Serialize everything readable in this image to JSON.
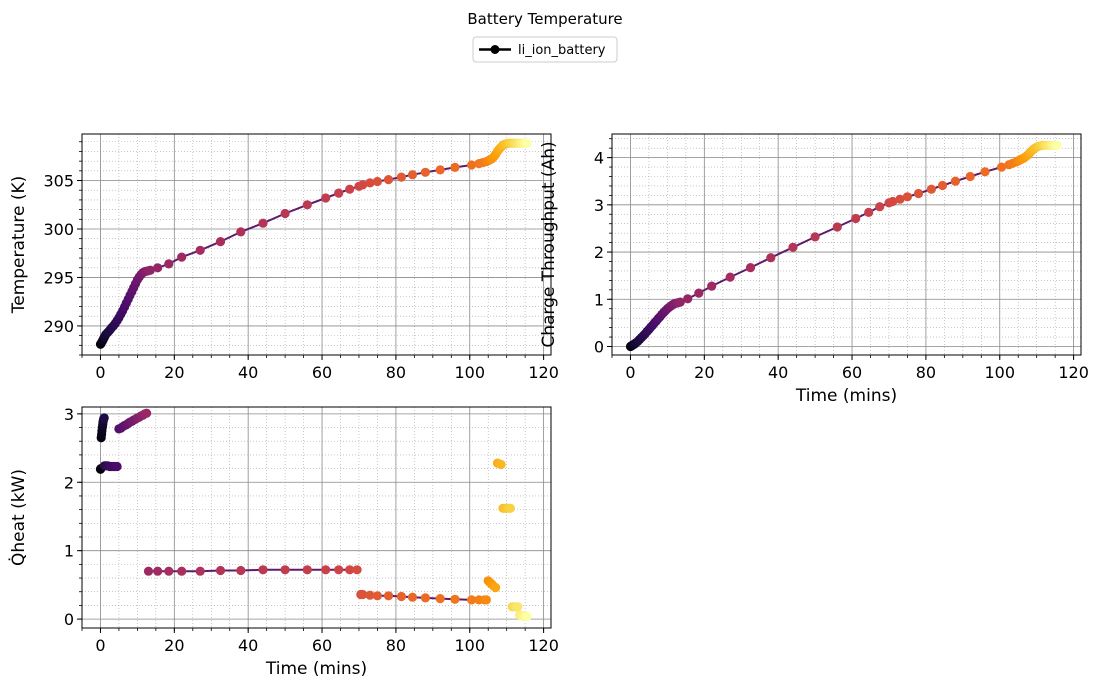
{
  "figure": {
    "title": "Battery Temperature",
    "legend": {
      "label": "li_ion_battery",
      "placement": "top-center"
    }
  },
  "style": {
    "line_color": "#5e1b6e",
    "major_grid_color": "#8c8c8c",
    "minor_grid_color": "#a6a6a6",
    "colormap": "inferno",
    "colormap_stops": [
      "#000004",
      "#1b0c41",
      "#4a0c6b",
      "#781c6d",
      "#a52c60",
      "#cf4446",
      "#ed6925",
      "#fb9b06",
      "#f7d13d",
      "#fcffa4"
    ],
    "grid": "major solid + minor dotted"
  },
  "chart_data": [
    {
      "id": "temperature",
      "type": "line",
      "title": "",
      "xlabel": "",
      "ylabel": "Temperature (K)",
      "xlim": [
        -5,
        122
      ],
      "ylim": [
        287,
        309.8
      ],
      "xticks": [
        0,
        20,
        40,
        60,
        80,
        100,
        120
      ],
      "yticks": [
        290,
        295,
        300,
        305
      ],
      "grid": true,
      "series": [
        {
          "name": "li_ion_battery",
          "x": [
            0,
            0.2,
            0.4,
            0.6,
            0.8,
            1.0,
            1.2,
            1.5,
            2.0,
            2.5,
            3.0,
            3.5,
            4.0,
            4.5,
            5.0,
            5.5,
            6.0,
            6.5,
            7.0,
            7.5,
            8.0,
            8.5,
            9.0,
            9.5,
            10.0,
            10.5,
            11.0,
            11.5,
            12.0,
            12.5,
            13.0,
            13.5,
            15.5,
            18.5,
            22.0,
            27.0,
            32.5,
            38.0,
            44.0,
            50.0,
            56.0,
            61.0,
            64.5,
            67.5,
            70.0,
            71.0,
            73.0,
            75.0,
            78.0,
            81.5,
            84.5,
            88.0,
            92.0,
            96.0,
            100.5,
            102.5,
            103.5,
            104.5,
            105.0,
            105.5,
            106.0,
            106.5,
            107.0,
            107.5,
            108.0,
            108.5,
            109.0,
            109.5,
            110.0,
            110.5,
            111.0,
            111.5,
            112.0,
            112.5,
            113.0,
            113.5,
            114.0,
            114.5,
            115.0,
            115.5
          ],
          "y": [
            288.1,
            288.2,
            288.35,
            288.5,
            288.65,
            288.8,
            288.95,
            289.15,
            289.35,
            289.55,
            289.8,
            290.0,
            290.25,
            290.55,
            290.85,
            291.2,
            291.55,
            291.95,
            292.35,
            292.75,
            293.15,
            293.55,
            293.95,
            294.35,
            294.75,
            295.05,
            295.3,
            295.5,
            295.6,
            295.65,
            295.7,
            295.75,
            296.0,
            296.4,
            297.1,
            297.8,
            298.7,
            299.7,
            300.6,
            301.6,
            302.5,
            303.2,
            303.7,
            304.1,
            304.4,
            304.55,
            304.75,
            304.9,
            305.1,
            305.35,
            305.6,
            305.85,
            306.1,
            306.35,
            306.6,
            306.75,
            306.85,
            306.95,
            307.05,
            307.15,
            307.25,
            307.45,
            307.7,
            308.0,
            308.25,
            308.45,
            308.65,
            308.75,
            308.8,
            308.85,
            308.85,
            308.85,
            308.85,
            308.85,
            308.85,
            308.85,
            308.85,
            308.85,
            308.85,
            308.85
          ]
        }
      ]
    },
    {
      "id": "charge",
      "type": "line",
      "title": "",
      "xlabel": "Time (mins)",
      "ylabel": "Charge Throughput (Ah)",
      "xlim": [
        -5,
        122
      ],
      "ylim": [
        -0.18,
        4.5
      ],
      "xticks": [
        0,
        20,
        40,
        60,
        80,
        100,
        120
      ],
      "yticks": [
        0,
        1,
        2,
        3,
        4
      ],
      "grid": true,
      "series": [
        {
          "name": "li_ion_battery",
          "x": [
            0,
            0.2,
            0.4,
            0.6,
            0.8,
            1.0,
            1.2,
            1.5,
            2.0,
            2.5,
            3.0,
            3.5,
            4.0,
            4.5,
            5.0,
            5.5,
            6.0,
            6.5,
            7.0,
            7.5,
            8.0,
            8.5,
            9.0,
            9.5,
            10.0,
            10.5,
            11.0,
            11.5,
            12.0,
            12.5,
            13.0,
            13.5,
            15.5,
            18.5,
            22.0,
            27.0,
            32.5,
            38.0,
            44.0,
            50.0,
            56.0,
            61.0,
            64.5,
            67.5,
            70.0,
            71.0,
            73.0,
            75.0,
            78.0,
            81.5,
            84.5,
            88.0,
            92.0,
            96.0,
            100.5,
            102.5,
            103.5,
            104.5,
            105.0,
            105.5,
            106.0,
            106.5,
            107.0,
            107.5,
            108.0,
            108.5,
            109.0,
            109.5,
            110.0,
            110.5,
            111.0,
            111.5,
            112.0,
            112.5,
            113.0,
            113.5,
            114.0,
            114.5,
            115.0,
            115.5
          ],
          "y": [
            0.0,
            0.01,
            0.02,
            0.03,
            0.04,
            0.05,
            0.06,
            0.08,
            0.11,
            0.15,
            0.19,
            0.23,
            0.27,
            0.32,
            0.36,
            0.41,
            0.45,
            0.5,
            0.54,
            0.59,
            0.63,
            0.68,
            0.72,
            0.76,
            0.8,
            0.83,
            0.86,
            0.89,
            0.91,
            0.92,
            0.93,
            0.94,
            1.01,
            1.13,
            1.28,
            1.47,
            1.67,
            1.88,
            2.1,
            2.32,
            2.53,
            2.71,
            2.84,
            2.96,
            3.04,
            3.07,
            3.12,
            3.17,
            3.24,
            3.33,
            3.41,
            3.5,
            3.6,
            3.7,
            3.8,
            3.85,
            3.88,
            3.91,
            3.93,
            3.95,
            3.97,
            3.99,
            4.02,
            4.05,
            4.09,
            4.13,
            4.17,
            4.2,
            4.22,
            4.24,
            4.25,
            4.26,
            4.26,
            4.26,
            4.26,
            4.26,
            4.26,
            4.26,
            4.26,
            4.26
          ]
        }
      ]
    },
    {
      "id": "heat",
      "type": "scatter",
      "title": "",
      "xlabel": "Time (mins)",
      "ylabel": "Q̇heat (kW)",
      "xlim": [
        -5,
        122
      ],
      "ylim": [
        -0.13,
        3.1
      ],
      "xticks": [
        0,
        20,
        40,
        60,
        80,
        100,
        120
      ],
      "yticks": [
        0,
        1,
        2,
        3
      ],
      "grid": true,
      "series": [
        {
          "name": "li_ion_battery",
          "x": [
            0,
            0.1,
            0.2,
            0.3,
            0.4,
            0.5,
            0.6,
            0.7,
            0.8,
            0.9,
            1.0,
            1.1,
            1.3,
            1.6,
            2.0,
            2.5,
            3.0,
            3.5,
            4.0,
            4.5,
            5.0,
            5.5,
            6.0,
            6.5,
            7.0,
            7.5,
            8.0,
            8.5,
            9.0,
            9.5,
            10.0,
            10.5,
            11.0,
            11.5,
            12.0,
            12.5,
            13.0,
            15.5,
            18.5,
            22.0,
            27.0,
            32.5,
            38.0,
            44.0,
            50.0,
            56.0,
            61.0,
            64.5,
            67.5,
            69.5,
            70.5,
            71.0,
            73.0,
            75.0,
            78.0,
            81.5,
            84.5,
            88.0,
            92.0,
            96.0,
            100.5,
            102.5,
            104.0,
            104.5,
            105.0,
            105.5,
            106.0,
            106.5,
            107.0,
            107.5,
            108.0,
            108.5,
            109.0,
            109.5,
            110.0,
            110.5,
            111.0,
            111.5,
            112.0,
            112.5,
            113.0,
            113.5,
            114.0,
            114.5,
            115.0,
            115.5
          ],
          "y": [
            2.19,
            2.2,
            2.65,
            2.7,
            2.75,
            2.8,
            2.84,
            2.88,
            2.91,
            2.93,
            2.94,
            2.24,
            2.24,
            2.24,
            2.24,
            2.23,
            2.23,
            2.23,
            2.23,
            2.23,
            2.78,
            2.79,
            2.81,
            2.83,
            2.84,
            2.86,
            2.88,
            2.89,
            2.91,
            2.92,
            2.94,
            2.95,
            2.97,
            2.98,
            3.0,
            3.01,
            0.7,
            0.7,
            0.7,
            0.7,
            0.7,
            0.71,
            0.71,
            0.72,
            0.72,
            0.72,
            0.72,
            0.72,
            0.72,
            0.72,
            0.36,
            0.36,
            0.35,
            0.34,
            0.34,
            0.33,
            0.32,
            0.31,
            0.3,
            0.29,
            0.28,
            0.28,
            0.28,
            0.28,
            0.56,
            0.53,
            0.51,
            0.48,
            0.46,
            2.28,
            2.27,
            2.26,
            1.62,
            1.62,
            1.62,
            1.62,
            1.62,
            0.18,
            0.18,
            0.18,
            0.18,
            0.06,
            0.05,
            0.04,
            0.04,
            0.04
          ]
        }
      ]
    }
  ]
}
